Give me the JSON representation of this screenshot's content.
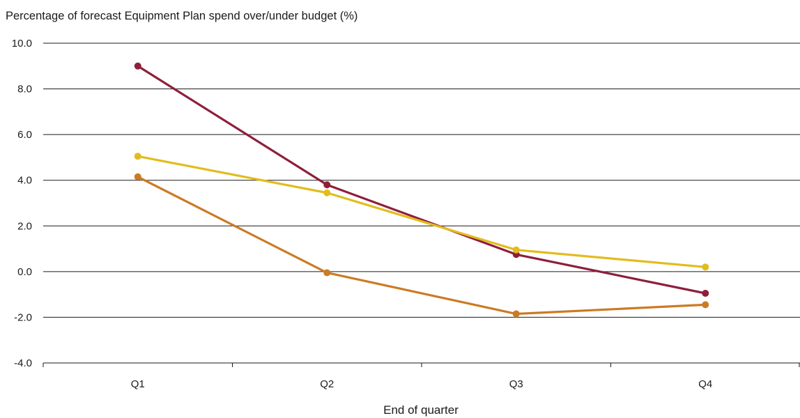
{
  "chart_data": {
    "type": "line",
    "title": "Percentage of forecast Equipment Plan spend over/under budget (%)",
    "xlabel": "End of quarter",
    "ylabel": "",
    "categories": [
      "Q1",
      "Q2",
      "Q3",
      "Q4"
    ],
    "ylim": [
      -4.0,
      10.0
    ],
    "yticks": [
      "10.0",
      "8.0",
      "6.0",
      "4.0",
      "2.0",
      "0.0",
      "-2.0",
      "-4.0"
    ],
    "ytick_values": [
      10,
      8,
      6,
      4,
      2,
      0,
      -2,
      -4
    ],
    "grid": "horizontal",
    "legend": "none",
    "series": [
      {
        "color": "#8E1F3B",
        "values": [
          9.0,
          3.8,
          0.75,
          -0.95
        ]
      },
      {
        "color": "#E2BC1E",
        "values": [
          5.05,
          3.45,
          0.95,
          0.2
        ]
      },
      {
        "color": "#CC7A24",
        "values": [
          4.15,
          -0.05,
          -1.85,
          -1.45
        ]
      }
    ]
  }
}
